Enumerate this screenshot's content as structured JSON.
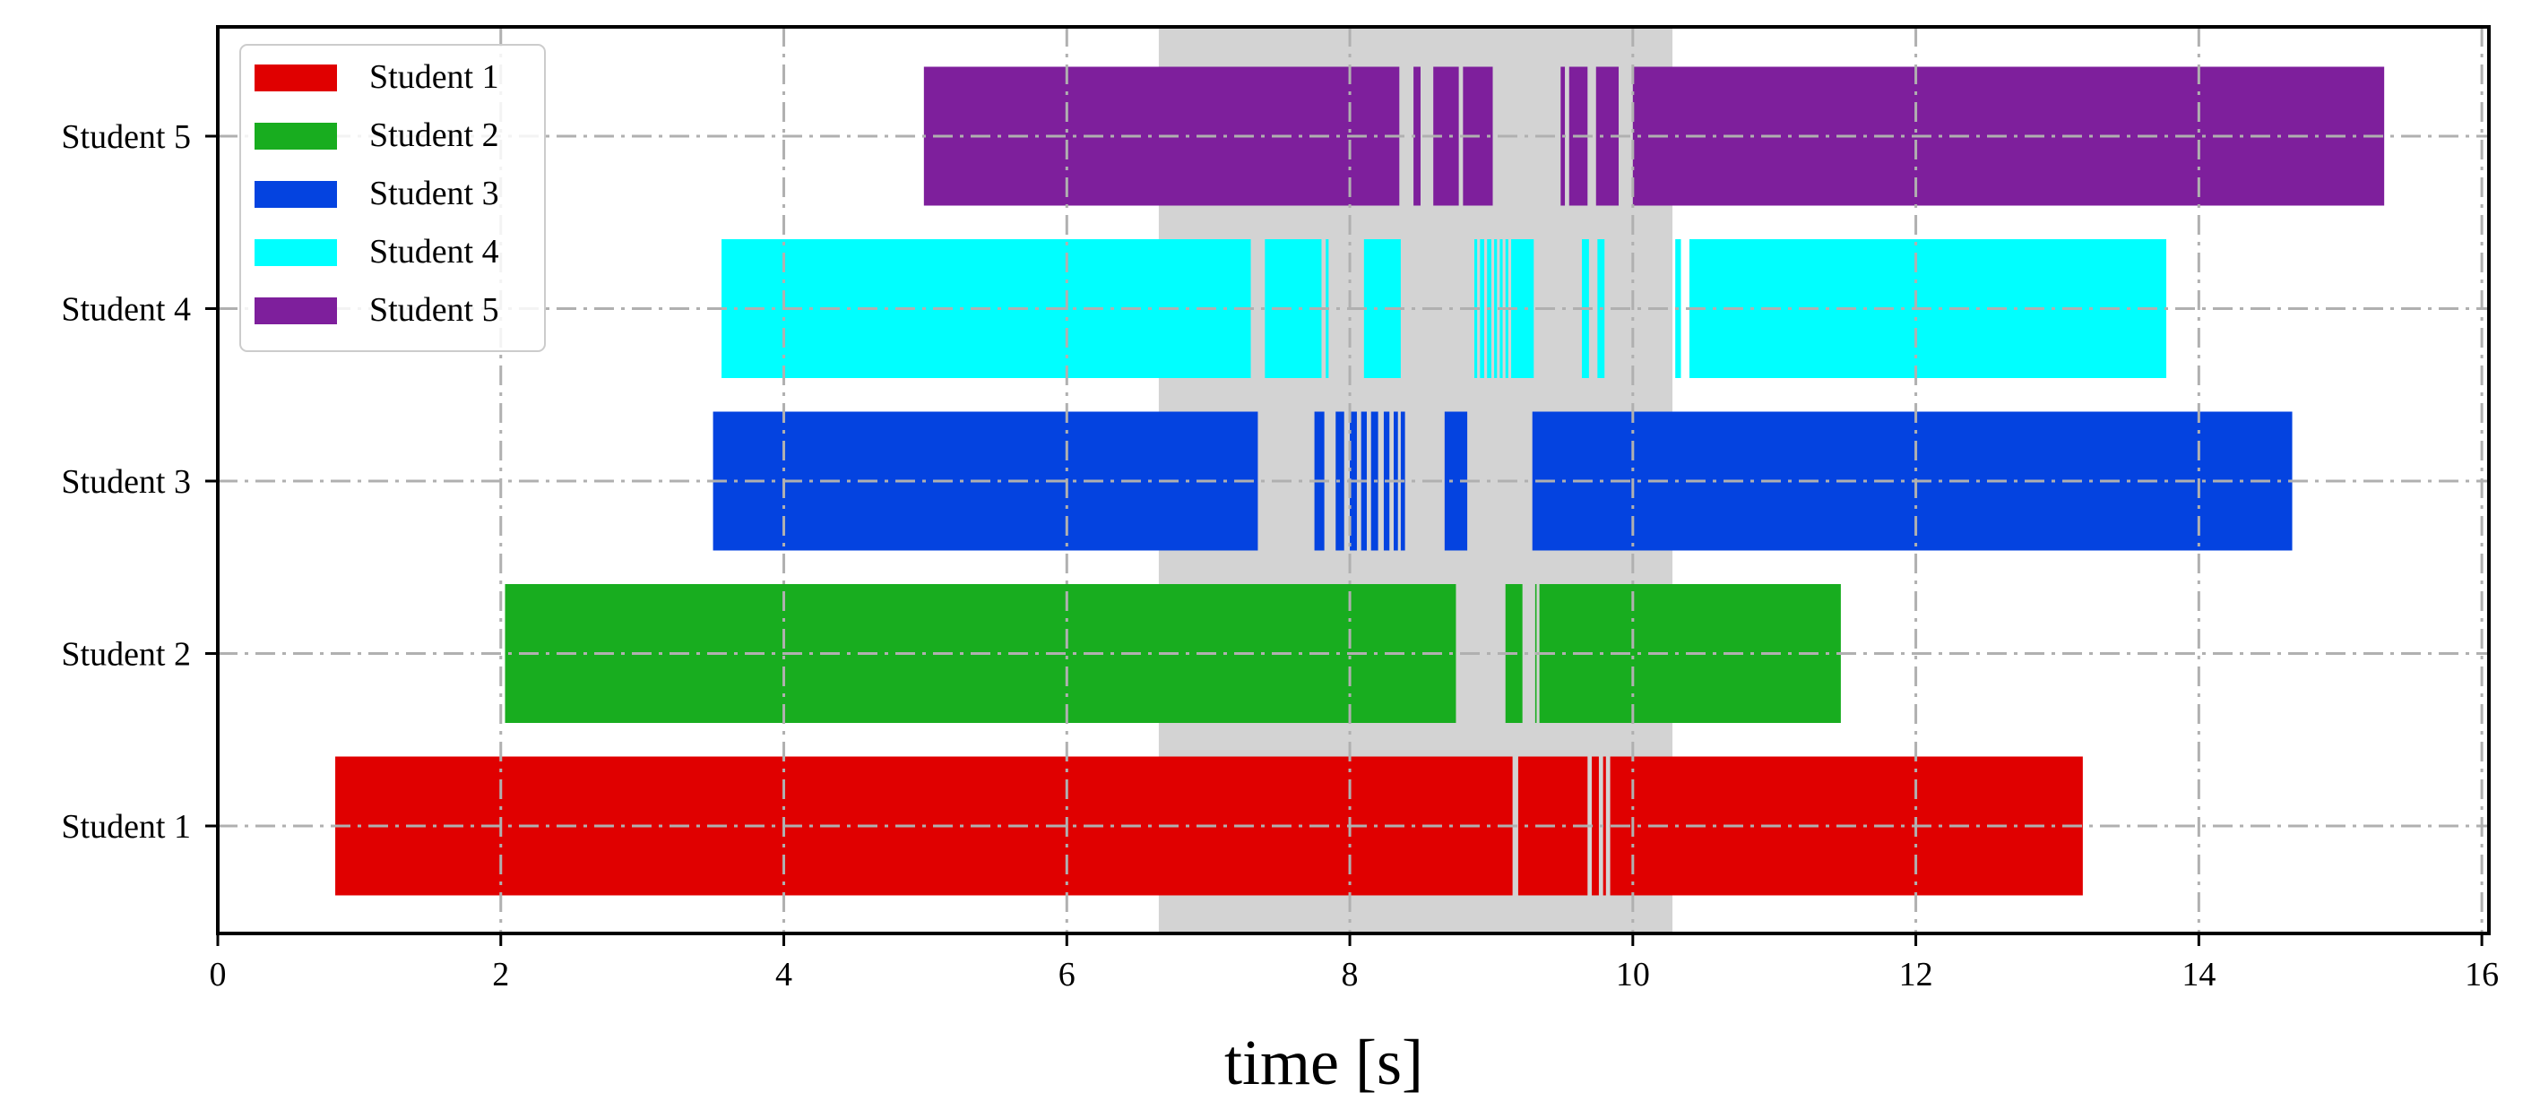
{
  "chart_data": {
    "type": "broken_barh",
    "title": "",
    "xlabel": "time [s]",
    "ylabel": "",
    "xlim": [
      0,
      16.05
    ],
    "xticks": [
      0,
      2,
      4,
      6,
      8,
      10,
      12,
      14,
      16
    ],
    "grid": true,
    "legend_position": "top-left",
    "highlight_span": {
      "start": 6.65,
      "end": 10.28,
      "color": "#d3d3d3"
    },
    "series": [
      {
        "name": "Student 1",
        "label": "Student 1",
        "color": "#e00000",
        "segments": [
          [
            0.83,
            9.15
          ],
          [
            9.19,
            9.68
          ],
          [
            9.71,
            9.76
          ],
          [
            9.79,
            9.81
          ],
          [
            9.84,
            13.18
          ]
        ]
      },
      {
        "name": "Student 2",
        "label": "Student 2",
        "color": "#18ad1f",
        "segments": [
          [
            2.03,
            8.75
          ],
          [
            9.1,
            9.22
          ],
          [
            9.31,
            9.32
          ],
          [
            9.34,
            11.47
          ]
        ]
      },
      {
        "name": "Student 3",
        "label": "Student 3",
        "color": "#0443e0",
        "segments": [
          [
            3.5,
            7.35
          ],
          [
            7.75,
            7.82
          ],
          [
            7.9,
            7.96
          ],
          [
            8.0,
            8.05
          ],
          [
            8.08,
            8.12
          ],
          [
            8.15,
            8.2
          ],
          [
            8.24,
            8.28
          ],
          [
            8.31,
            8.34
          ],
          [
            8.36,
            8.39
          ],
          [
            8.67,
            8.83
          ],
          [
            9.29,
            14.66
          ]
        ]
      },
      {
        "name": "Student 4",
        "label": "Student 4",
        "color": "#00ffff",
        "segments": [
          [
            3.56,
            7.3
          ],
          [
            7.4,
            7.8
          ],
          [
            7.83,
            7.85
          ],
          [
            8.1,
            8.36
          ],
          [
            8.88,
            8.9
          ],
          [
            8.92,
            8.95
          ],
          [
            8.97,
            9.0
          ],
          [
            9.02,
            9.04
          ],
          [
            9.06,
            9.08
          ],
          [
            9.1,
            9.12
          ],
          [
            9.14,
            9.3
          ],
          [
            9.64,
            9.69
          ],
          [
            9.75,
            9.8
          ],
          [
            10.3,
            10.34
          ],
          [
            10.4,
            13.77
          ]
        ]
      },
      {
        "name": "Student 5",
        "label": "Student 5",
        "color": "#7e1f9c",
        "segments": [
          [
            4.99,
            8.35
          ],
          [
            8.45,
            8.5
          ],
          [
            8.59,
            8.77
          ],
          [
            8.8,
            9.01
          ],
          [
            9.49,
            9.52
          ],
          [
            9.55,
            9.68
          ],
          [
            9.74,
            9.9
          ],
          [
            10.0,
            15.31
          ]
        ]
      }
    ]
  }
}
